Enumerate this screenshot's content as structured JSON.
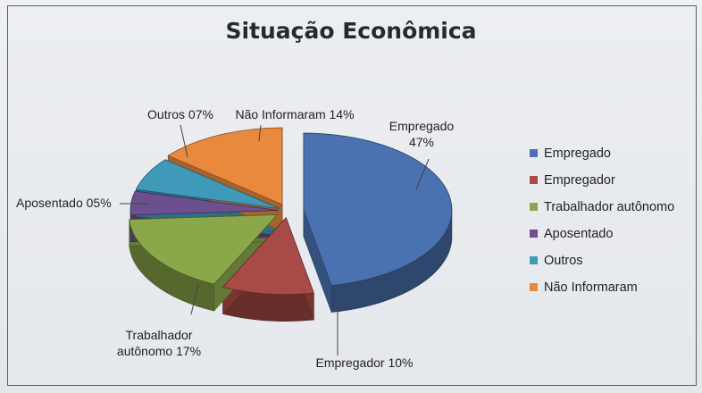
{
  "chart_data": {
    "type": "pie",
    "title": "Situação Econômica",
    "slices": [
      {
        "name": "Empregado",
        "label": "Empregado 47%",
        "value": 47,
        "color": "#4a72b0"
      },
      {
        "name": "Empregador",
        "label": "Empregador 10%",
        "value": 10,
        "color": "#a84a46"
      },
      {
        "name": "Trabalhador autônomo",
        "label": "Trabalhador autônomo 17%",
        "value": 17,
        "color": "#8aa84a"
      },
      {
        "name": "Aposentado",
        "label": "Aposentado 05%",
        "value": 5,
        "color": "#6c4f8e"
      },
      {
        "name": "Outros",
        "label": "Outros 07%",
        "value": 7,
        "color": "#3e9ab8"
      },
      {
        "name": "Não Informaram",
        "label": "Não Informaram 14%",
        "value": 14,
        "color": "#e8893e"
      }
    ],
    "legend_position": "right",
    "style": "3d-exploded"
  }
}
